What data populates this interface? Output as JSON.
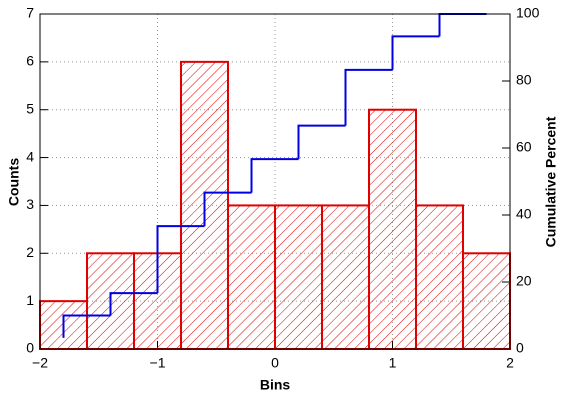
{
  "chart_data": {
    "type": "histogram",
    "bins": [
      -2,
      -1.6,
      -1.2,
      -0.8,
      -0.4,
      0,
      0.4,
      0.8,
      1.2,
      1.6,
      2
    ],
    "values": [
      1,
      2,
      2,
      6,
      3,
      3,
      3,
      5,
      3,
      2
    ],
    "color": "#e00000",
    "hatch": "diagonal",
    "xlabel": "Bins",
    "ylabel": "Counts",
    "y2label": "Cumulative Percent",
    "xlim": [
      -2,
      2
    ],
    "xticks": [
      {
        "value": -2,
        "label": "−2"
      },
      {
        "value": -1,
        "label": "−1"
      },
      0,
      1,
      2
    ],
    "ylim": [
      0,
      7
    ],
    "yticks": [
      0,
      1,
      2,
      3,
      4,
      5,
      6,
      7
    ],
    "y2lim": [
      0,
      100
    ],
    "y2ticks": [
      0,
      20,
      40,
      60,
      80,
      100
    ],
    "grid": true,
    "line": {
      "axis": "y2",
      "color": "#0000e0",
      "drawstyle": "steps-pre",
      "x": [
        -1.8,
        -1.4,
        -1.0,
        -0.6,
        -0.2,
        0.2,
        0.6,
        1.0,
        1.4,
        1.8
      ],
      "values": [
        3.33,
        10,
        16.67,
        36.67,
        46.67,
        56.67,
        66.67,
        83.33,
        93.33,
        100
      ]
    }
  }
}
